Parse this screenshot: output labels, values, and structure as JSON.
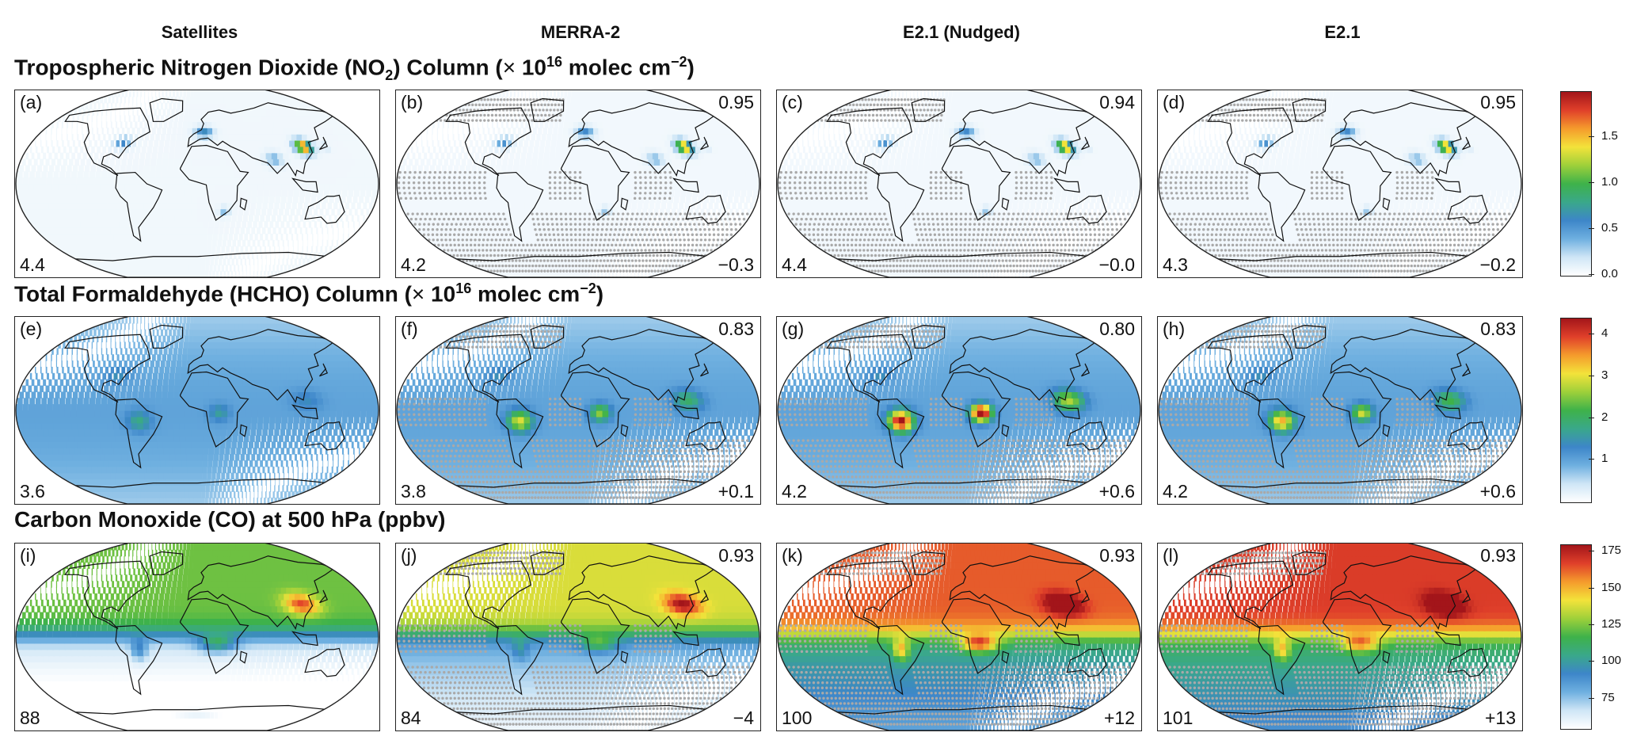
{
  "columns": [
    "Satellites",
    "MERRA-2",
    "E2.1 (Nudged)",
    "E2.1"
  ],
  "rows": [
    {
      "title_main": "Tropospheric Nitrogen Dioxide (NO",
      "title_sub": "2",
      "title_mid": ") Column (",
      "title_times": "×",
      "title_base": " 10",
      "title_exp": "16",
      "title_unit": " molec cm",
      "title_unit_exp": "−2",
      "title_end": ")",
      "species": "no2",
      "colorbar_ticks": [
        "0.0",
        "0.5",
        "1.0",
        "1.5"
      ],
      "colorbar_values": [
        0.0,
        0.5,
        1.0,
        1.5
      ],
      "colorbar_range": [
        0.0,
        2.0
      ],
      "panels": [
        {
          "label": "(a)",
          "mean": "4.4",
          "corr": "",
          "bias": ""
        },
        {
          "label": "(b)",
          "mean": "4.2",
          "corr": "0.95",
          "bias": "−0.3"
        },
        {
          "label": "(c)",
          "mean": "4.4",
          "corr": "0.94",
          "bias": "−0.0"
        },
        {
          "label": "(d)",
          "mean": "4.3",
          "corr": "0.95",
          "bias": "−0.2"
        }
      ]
    },
    {
      "title_main": "Total Formaldehyde (HCHO) Column (",
      "title_sub": "",
      "title_mid": "",
      "title_times": "×",
      "title_base": " 10",
      "title_exp": "16",
      "title_unit": " molec cm",
      "title_unit_exp": "−2",
      "title_end": ")",
      "species": "hcho",
      "colorbar_ticks": [
        "1",
        "2",
        "3",
        "4"
      ],
      "colorbar_values": [
        1,
        2,
        3,
        4
      ],
      "colorbar_range": [
        0,
        4.4
      ],
      "panels": [
        {
          "label": "(e)",
          "mean": "3.6",
          "corr": "",
          "bias": ""
        },
        {
          "label": "(f)",
          "mean": "3.8",
          "corr": "0.83",
          "bias": "+0.1"
        },
        {
          "label": "(g)",
          "mean": "4.2",
          "corr": "0.80",
          "bias": "+0.6"
        },
        {
          "label": "(h)",
          "mean": "4.2",
          "corr": "0.83",
          "bias": "+0.6"
        }
      ]
    },
    {
      "title_main": "Carbon Monoxide (CO) at 500 hPa (ppbv)",
      "title_sub": "",
      "title_mid": "",
      "title_times": "",
      "title_base": "",
      "title_exp": "",
      "title_unit": "",
      "title_unit_exp": "",
      "title_end": "",
      "species": "co",
      "colorbar_ticks": [
        "75",
        "100",
        "125",
        "150",
        "175"
      ],
      "colorbar_values": [
        75,
        100,
        125,
        150,
        175
      ],
      "colorbar_range": [
        55,
        180
      ],
      "panels": [
        {
          "label": "(i)",
          "mean": "88",
          "corr": "",
          "bias": ""
        },
        {
          "label": "(j)",
          "mean": "84",
          "corr": "0.93",
          "bias": "−4"
        },
        {
          "label": "(k)",
          "mean": "100",
          "corr": "0.93",
          "bias": "+12"
        },
        {
          "label": "(l)",
          "mean": "101",
          "corr": "0.93",
          "bias": "+13"
        }
      ]
    }
  ],
  "colormap": [
    "#ffffff",
    "#cfe6f6",
    "#6fb0e0",
    "#3d86c9",
    "#3aa88a",
    "#3eb24a",
    "#9ed03a",
    "#f3e33a",
    "#f59b2c",
    "#e0402a",
    "#a3151a"
  ]
}
